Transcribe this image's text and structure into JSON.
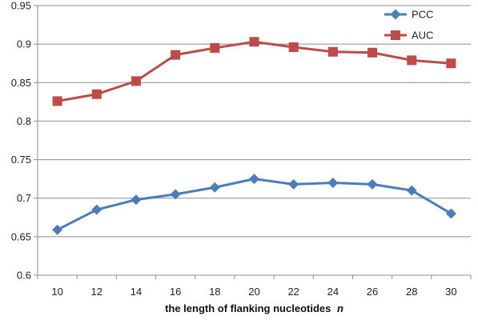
{
  "chart_data": {
    "type": "line",
    "x": [
      10,
      12,
      14,
      16,
      18,
      20,
      22,
      24,
      26,
      28,
      30
    ],
    "xlabel": "the length of flanking nucleotides",
    "xlabel_var": "n",
    "ylabel": "",
    "ylim": [
      0.6,
      0.95
    ],
    "yticks": [
      "0.6",
      "0.65",
      "0.7",
      "0.75",
      "0.8",
      "0.85",
      "0.9",
      "0.95"
    ],
    "xticks": [
      "10",
      "12",
      "14",
      "16",
      "18",
      "20",
      "22",
      "24",
      "26",
      "28",
      "30"
    ],
    "grid": "horizontal",
    "legend_position": "top-right",
    "series": [
      {
        "name": "PCC",
        "marker": "diamond",
        "color": "#4a7ebb",
        "values": [
          0.659,
          0.685,
          0.698,
          0.705,
          0.714,
          0.725,
          0.718,
          0.72,
          0.718,
          0.71,
          0.68
        ]
      },
      {
        "name": "AUC",
        "marker": "square",
        "color": "#be4b48",
        "values": [
          0.826,
          0.835,
          0.852,
          0.886,
          0.895,
          0.903,
          0.896,
          0.89,
          0.889,
          0.879,
          0.875
        ]
      }
    ]
  }
}
